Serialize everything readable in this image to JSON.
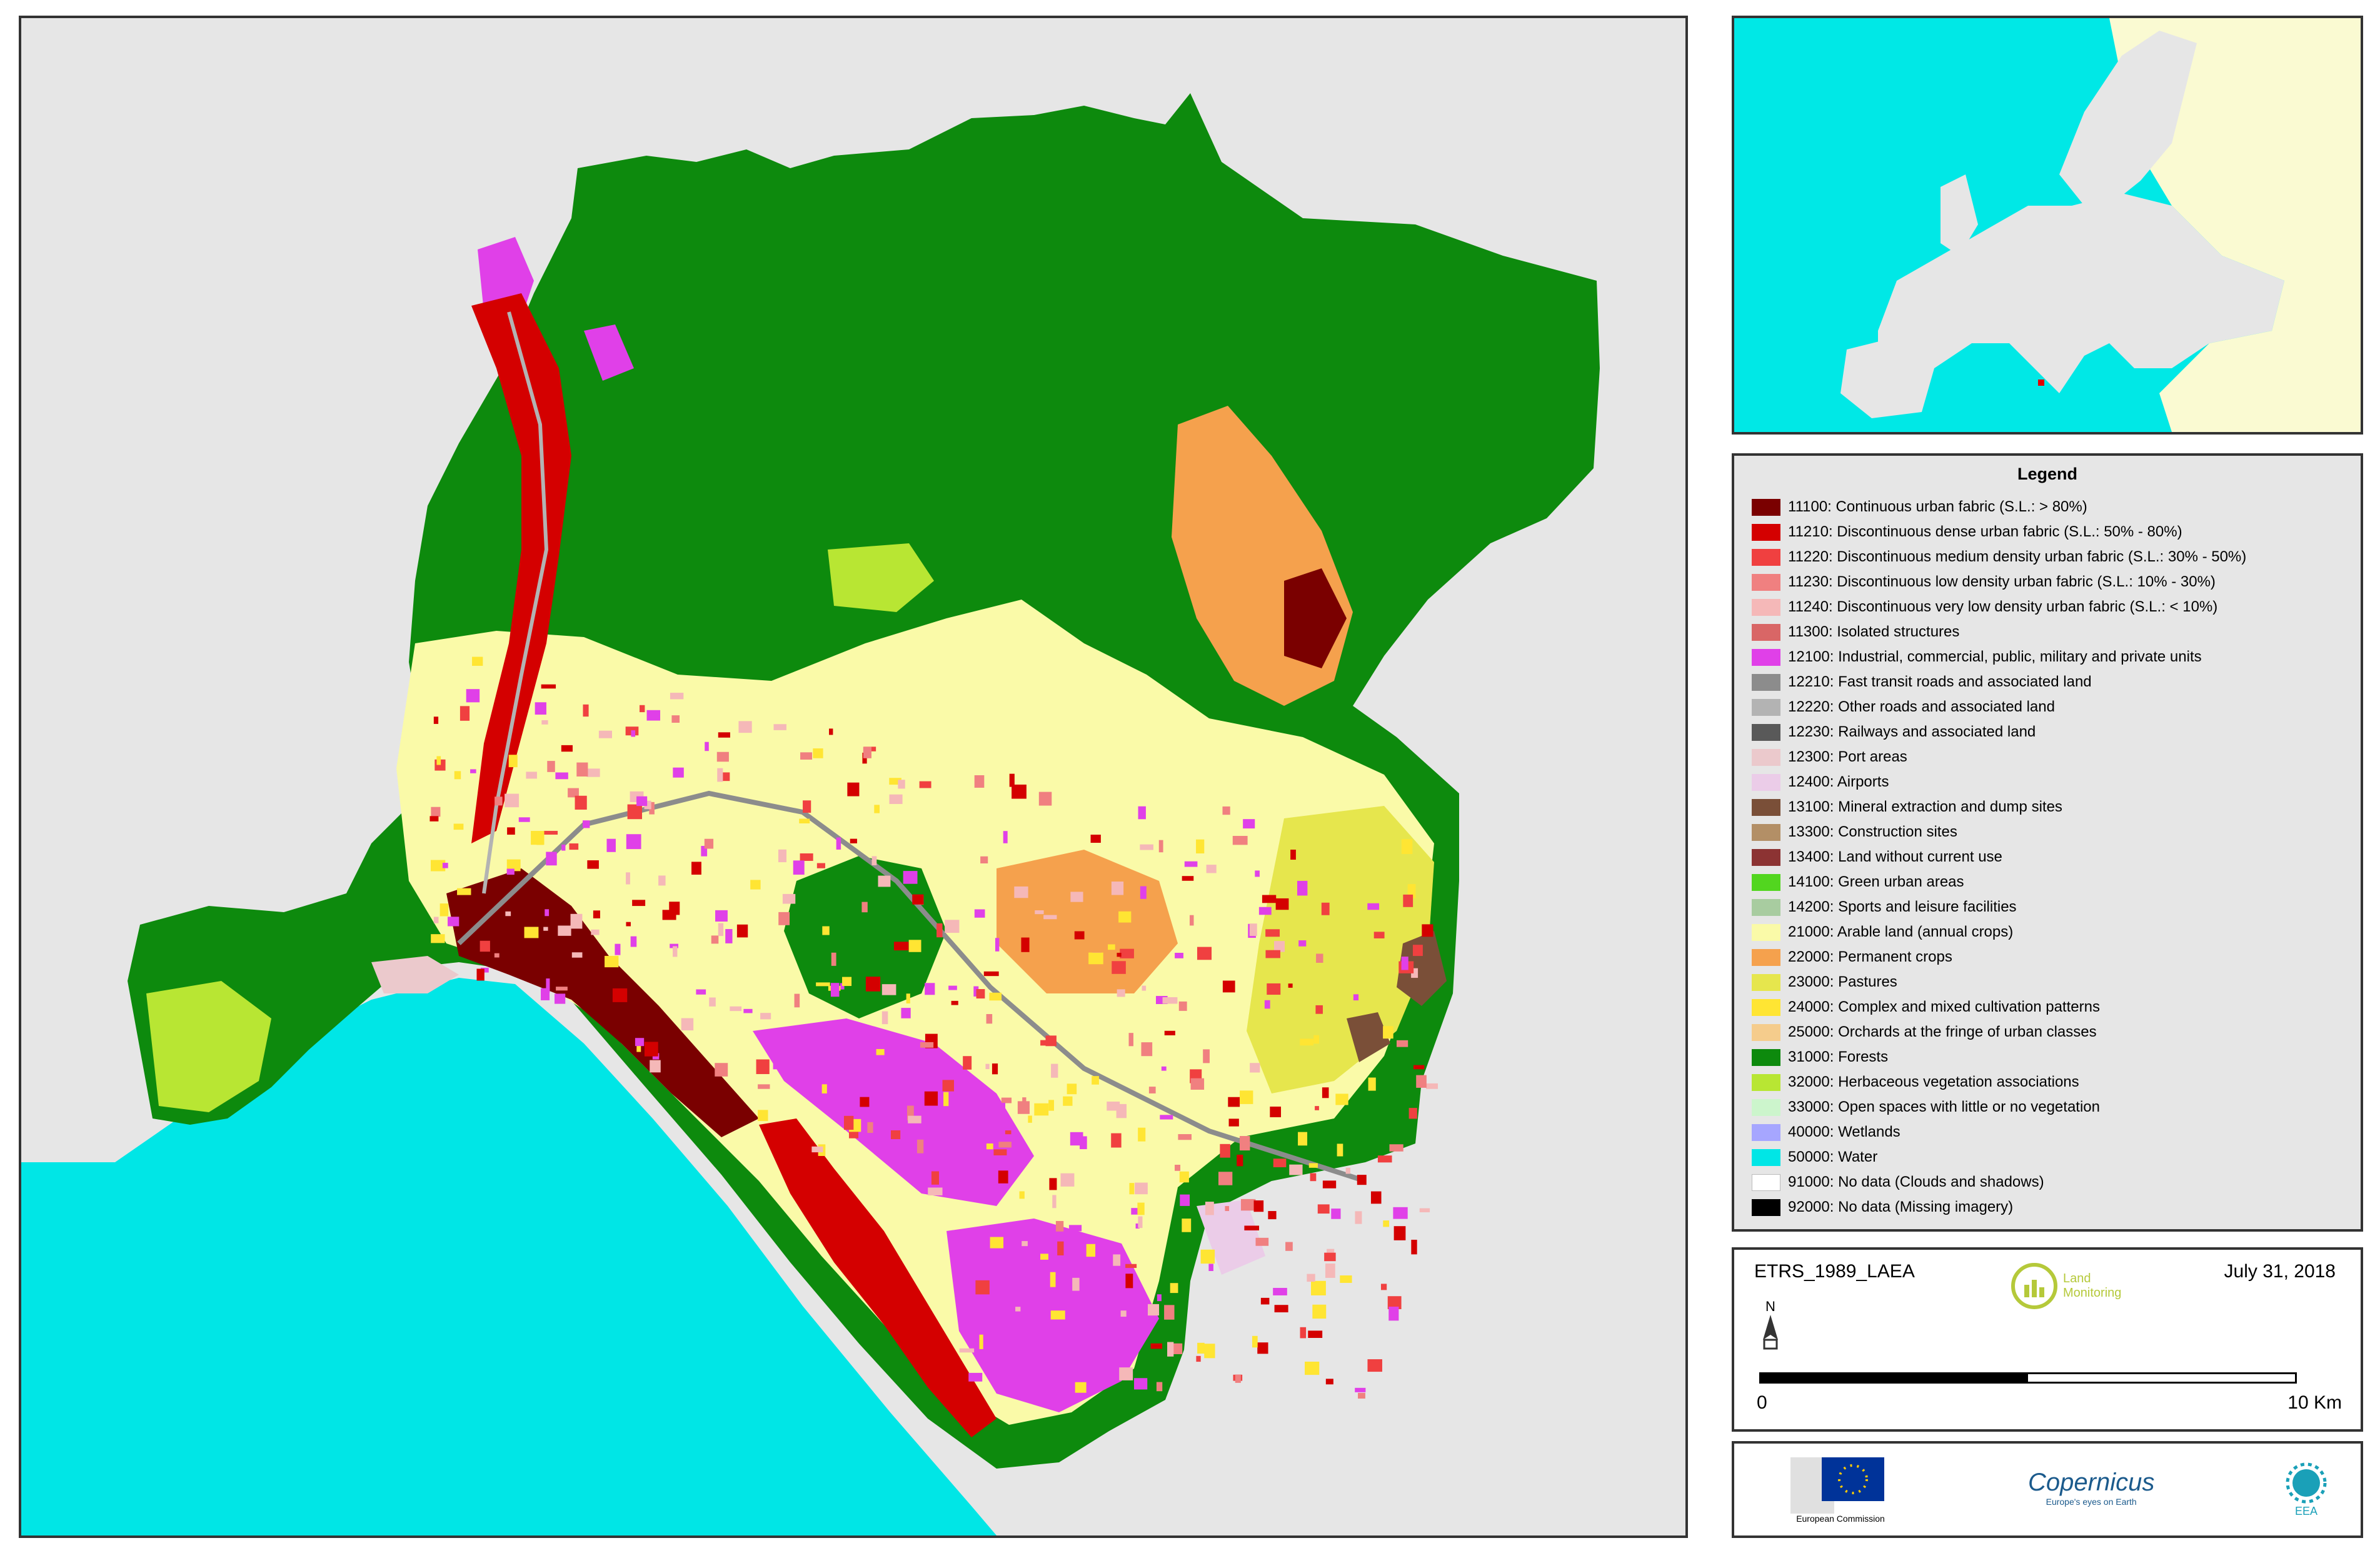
{
  "info": {
    "projection": "ETRS_1989_LAEA",
    "date": "July 31, 2018",
    "north_label": "N",
    "scale_start": "0",
    "scale_end": "10 Km",
    "land_monitoring_logo": "Land Monitoring"
  },
  "logos": {
    "ec_logo": "European Commission",
    "copernicus_logo": "Copernicus",
    "copernicus_tagline": "Europe's eyes on Earth",
    "eea_logo": "EEA"
  },
  "legend": {
    "title": "Legend",
    "items": [
      {
        "label": "11100: Continuous urban fabric (S.L.: > 80%)",
        "color": "#7a0000"
      },
      {
        "label": "11210: Discontinuous dense urban fabric (S.L.: 50% - 80%)",
        "color": "#d40000"
      },
      {
        "label": "11220: Discontinuous medium density urban fabric (S.L.: 30% - 50%)",
        "color": "#f04040"
      },
      {
        "label": "11230: Discontinuous low density urban fabric (S.L.: 10% - 30%)",
        "color": "#f08080"
      },
      {
        "label": "11240: Discontinuous very low density urban fabric (S.L.: < 10%)",
        "color": "#f5b8b8"
      },
      {
        "label": "11300: Isolated structures",
        "color": "#d96666"
      },
      {
        "label": "12100: Industrial, commercial, public, military and private units",
        "color": "#e040e8"
      },
      {
        "label": "12210: Fast transit roads and associated land",
        "color": "#8c8c8c"
      },
      {
        "label": "12220: Other roads and associated land",
        "color": "#b3b3b3"
      },
      {
        "label": "12230: Railways and associated land",
        "color": "#595959"
      },
      {
        "label": "12300: Port areas",
        "color": "#ebc9cc"
      },
      {
        "label": "12400: Airports",
        "color": "#ebcce8"
      },
      {
        "label": "13100: Mineral extraction and dump sites",
        "color": "#7a4f38"
      },
      {
        "label": "13300: Construction sites",
        "color": "#b38f66"
      },
      {
        "label": "13400: Land without current use",
        "color": "#8c3333"
      },
      {
        "label": "14100: Green urban areas",
        "color": "#52d61f"
      },
      {
        "label": "14200: Sports and leisure facilities",
        "color": "#a8cca0"
      },
      {
        "label": "21000: Arable land (annual crops)",
        "color": "#fafaa8"
      },
      {
        "label": "22000: Permanent crops",
        "color": "#f5a14d"
      },
      {
        "label": "23000: Pastures",
        "color": "#e6e64d"
      },
      {
        "label": "24000: Complex and mixed cultivation patterns",
        "color": "#ffe533"
      },
      {
        "label": "25000: Orchards at the fringe of urban classes",
        "color": "#f5cc8c"
      },
      {
        "label": "31000: Forests",
        "color": "#0d8a0d"
      },
      {
        "label": "32000: Herbaceous vegetation associations",
        "color": "#b8e633"
      },
      {
        "label": "33000: Open spaces with little or no vegetation",
        "color": "#ccf5cc"
      },
      {
        "label": "40000: Wetlands",
        "color": "#a6a6ff"
      },
      {
        "label": "50000: Water",
        "color": "#00e6e6"
      },
      {
        "label": "91000: No data (Clouds and shadows)",
        "color": "#ffffff"
      },
      {
        "label": "92000: No data (Missing imagery)",
        "color": "#000000"
      }
    ]
  },
  "inset": {
    "highlight_color": "#e00000",
    "land_color": "#e6e6e6",
    "outside_color": "#fafad2",
    "sea_color": "#00e8e6"
  }
}
